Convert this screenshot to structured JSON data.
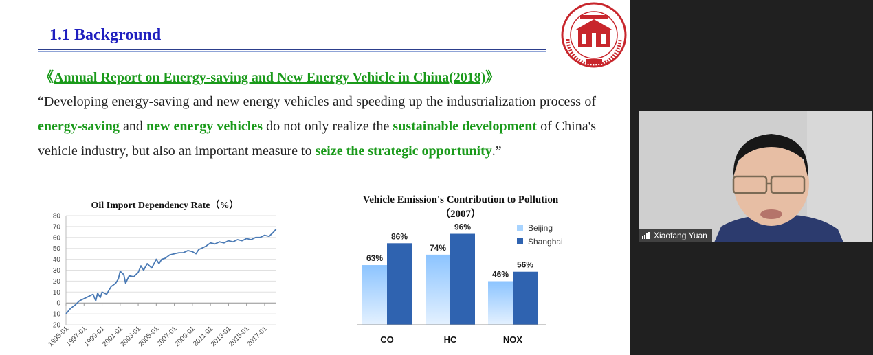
{
  "slide": {
    "heading": "1.1 Background",
    "report_open": "《",
    "report_title": "Annual Report on Energy-saving and New Energy Vehicle in China(2018)",
    "report_close": "》",
    "quote": {
      "p1": "“Developing energy-saving and new energy vehicles and speeding up the industrialization process of ",
      "h1": "energy-saving",
      "p2": " and ",
      "h2": "new energy vehicles",
      "p3": " do not only realize the ",
      "h3": "sustainable development",
      "p4": " of China's vehicle industry, but also an important measure to ",
      "h4": "seize the strategic opportunity",
      "p5": ".”"
    },
    "logo": {
      "ring_text": "HUNAN UNIVERSITY",
      "year_text": "1926",
      "colors": {
        "seal": "#c8262c"
      }
    }
  },
  "chart_data": [
    {
      "type": "line",
      "title": "Oil Import Dependency Rate（%）",
      "ylim": [
        -20,
        80
      ],
      "yticks": [
        80,
        70,
        60,
        50,
        40,
        30,
        20,
        10,
        0,
        -10,
        -20
      ],
      "xtick_labels": [
        "1995-01",
        "1997-01",
        "1999-01",
        "2001-01",
        "2003-01",
        "2005-01",
        "2007-01",
        "2009-01",
        "2011-01",
        "2013-01",
        "2015-01",
        "2017-01"
      ],
      "grid": true,
      "line_color": "#4a7ab5",
      "series": [
        {
          "x": [
            1995.0,
            1995.5,
            1996.0,
            1996.5,
            1997.0,
            1997.5,
            1998.0,
            1998.3,
            1998.5,
            1998.8,
            1999.0,
            1999.5,
            2000.0,
            2000.5,
            2000.8,
            2001.0,
            2001.4,
            2001.6,
            2002.0,
            2002.5,
            2003.0,
            2003.3,
            2003.6,
            2004.0,
            2004.5,
            2005.0,
            2005.3,
            2005.6,
            2006.0,
            2006.5,
            2007.0,
            2007.5,
            2008.0,
            2008.5,
            2009.0,
            2009.4,
            2009.7,
            2010.0,
            2010.5,
            2011.0,
            2011.5,
            2012.0,
            2012.5,
            2013.0,
            2013.5,
            2014.0,
            2014.5,
            2015.0,
            2015.5,
            2016.0,
            2016.5,
            2017.0,
            2017.5,
            2018.0,
            2018.3
          ],
          "y": [
            -10,
            -5,
            -2,
            2,
            4,
            6,
            8,
            2,
            9,
            5,
            10,
            8,
            15,
            18,
            22,
            29,
            26,
            18,
            25,
            24,
            28,
            34,
            30,
            36,
            32,
            40,
            36,
            40,
            41,
            44,
            45,
            46,
            46,
            48,
            47,
            45,
            49,
            50,
            52,
            55,
            54,
            56,
            55,
            57,
            56,
            58,
            57,
            59,
            58,
            60,
            60,
            62,
            61,
            65,
            68
          ]
        }
      ]
    },
    {
      "type": "bar",
      "title": "Vehicle Emission's Contribution to Pollution",
      "subtitle": "（2007）",
      "categories": [
        "CO",
        "HC",
        "NOX"
      ],
      "ylim": [
        0,
        100
      ],
      "grid": false,
      "legend_position": "top-right",
      "series": [
        {
          "name": "Beijing",
          "values": [
            63,
            74,
            46
          ],
          "labels": [
            "63%",
            "74%",
            "46%"
          ],
          "color": "#a8d4ff"
        },
        {
          "name": "Shanghai",
          "values": [
            86,
            96,
            56
          ],
          "labels": [
            "86%",
            "96%",
            "56%"
          ],
          "color": "#2f63b0"
        }
      ]
    }
  ],
  "video": {
    "participant_name": "Xiaofang Yuan",
    "signal_icon": "signal-bars-icon"
  }
}
